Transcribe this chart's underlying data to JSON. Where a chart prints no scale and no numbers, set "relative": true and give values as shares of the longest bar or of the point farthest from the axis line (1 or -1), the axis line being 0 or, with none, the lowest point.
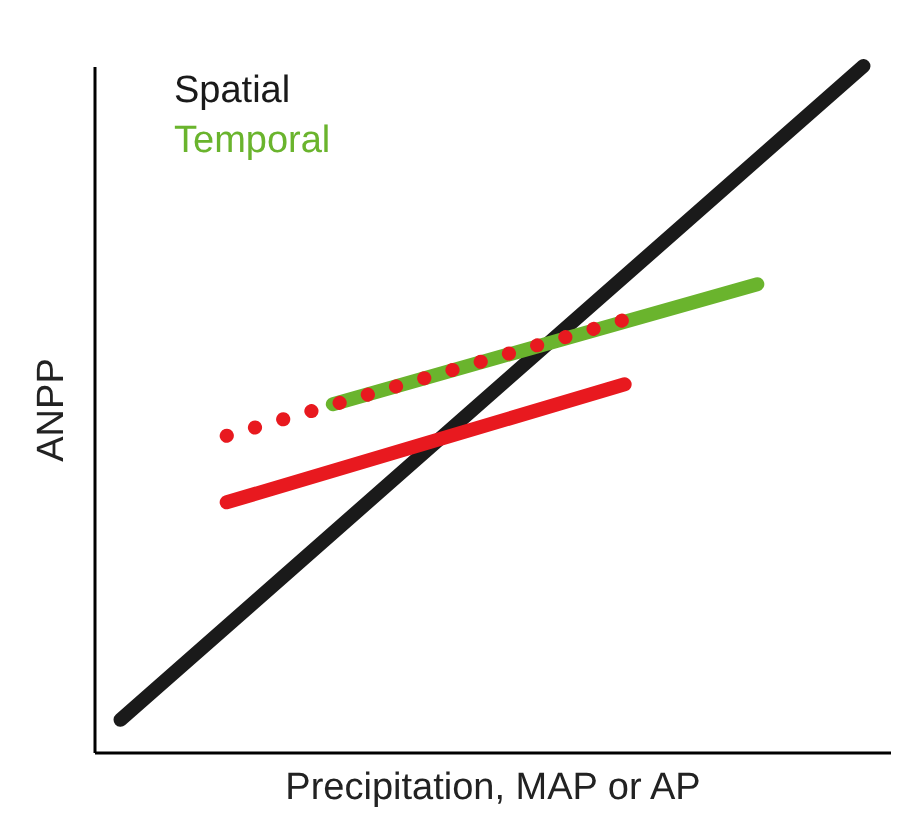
{
  "chart_data": {
    "type": "line",
    "relative": true,
    "xlabel": "Precipitation, MAP or AP",
    "ylabel": "ANPP",
    "legend": "top left",
    "categories": [
      null,
      null,
      null,
      null,
      null,
      null,
      null,
      null,
      null,
      null,
      null,
      null,
      null,
      null,
      null,
      null,
      null,
      null,
      null,
      null,
      null,
      null,
      null,
      null,
      null,
      null,
      null,
      null,
      null
    ],
    "series": [
      {
        "name": "Spatial",
        "color": "#1a1a1a",
        "line_style": "solid",
        "values": [
          0.047,
          null,
          null,
          null,
          null,
          null,
          null,
          null,
          null,
          null,
          null,
          null,
          null,
          null,
          null,
          null,
          null,
          null,
          null,
          null,
          null,
          null,
          null,
          null,
          null,
          null,
          null,
          null,
          1
        ]
      },
      {
        "name": "Temporal",
        "color": "#6ab42d",
        "line_style": "solid",
        "values": [
          null,
          null,
          null,
          null,
          null,
          null,
          null,
          null,
          0.507,
          null,
          null,
          null,
          null,
          null,
          null,
          null,
          null,
          null,
          null,
          null,
          null,
          null,
          null,
          null,
          0.682,
          null,
          null,
          null,
          null
        ]
      },
      {
        "color": "#e8191f",
        "line_style": "solid",
        "values": [
          null,
          null,
          null,
          null,
          0.364,
          null,
          null,
          null,
          null,
          null,
          null,
          null,
          null,
          null,
          null,
          null,
          null,
          null,
          null,
          0.536,
          null,
          null,
          null,
          null,
          null,
          null,
          null,
          null,
          null
        ]
      },
      {
        "color": "#e8191f",
        "line_style": "dotted",
        "values": [
          null,
          null,
          null,
          null,
          0.461,
          null,
          null,
          null,
          null,
          null,
          null,
          null,
          null,
          null,
          null,
          null,
          null,
          null,
          null,
          0.63,
          null,
          null,
          null,
          null,
          null,
          null,
          null,
          null,
          null
        ]
      }
    ]
  }
}
